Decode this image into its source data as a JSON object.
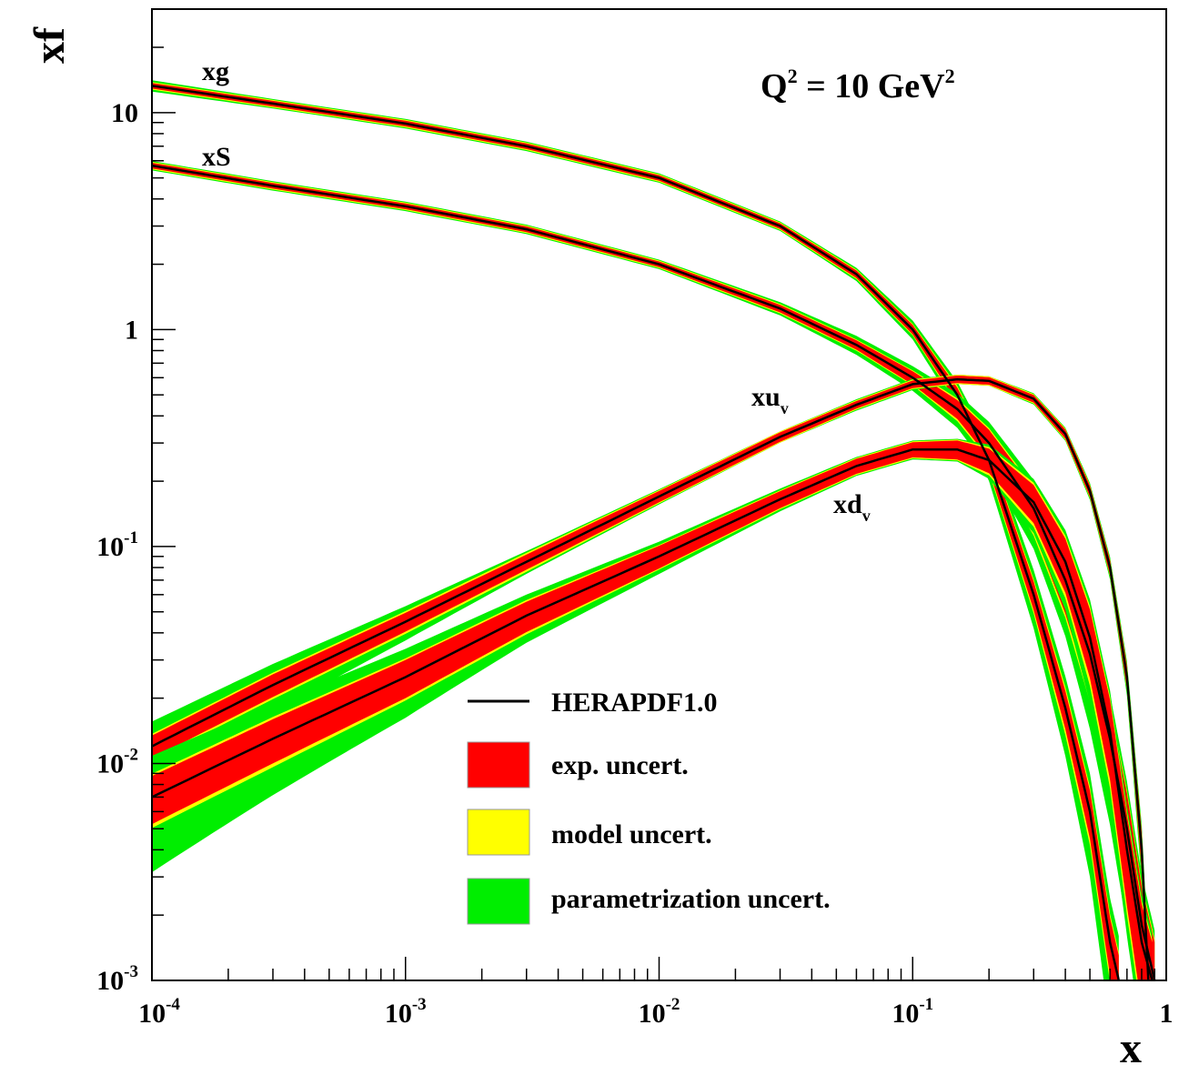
{
  "chart_data": {
    "type": "line",
    "x_scale": "log",
    "y_scale": "log",
    "xlim": [
      0.0001,
      1
    ],
    "ylim": [
      0.001,
      30
    ],
    "xlabel": "x",
    "ylabel": "xf",
    "annotation": {
      "base": "Q",
      "exp1": "2",
      "mid": " = 10 GeV",
      "exp2": "2"
    },
    "x_ticks": [
      {
        "value": 0.0001,
        "base": "10",
        "exp": "-4"
      },
      {
        "value": 0.001,
        "base": "10",
        "exp": "-3"
      },
      {
        "value": 0.01,
        "base": "10",
        "exp": "-2"
      },
      {
        "value": 0.1,
        "base": "10",
        "exp": "-1"
      },
      {
        "value": 1,
        "base": "1",
        "exp": ""
      }
    ],
    "y_ticks": [
      {
        "value": 0.001,
        "base": "10",
        "exp": "-3"
      },
      {
        "value": 0.01,
        "base": "10",
        "exp": "-2"
      },
      {
        "value": 0.1,
        "base": "10",
        "exp": "-1"
      },
      {
        "value": 1,
        "base": "1",
        "exp": ""
      },
      {
        "value": 10,
        "base": "10",
        "exp": ""
      }
    ],
    "colors": {
      "central": "#000000",
      "exp": "#ff0000",
      "model": "#ffff00",
      "param": "#00ee00"
    },
    "legend": {
      "placement": "bottom-center",
      "entries": [
        {
          "type": "line",
          "label": "HERAPDF1.0"
        },
        {
          "type": "box",
          "color": "#ff0000",
          "label": "exp. uncert."
        },
        {
          "type": "box",
          "color": "#ffff00",
          "label": "model uncert."
        },
        {
          "type": "box",
          "color": "#00ee00",
          "label": "parametrization uncert."
        }
      ]
    },
    "curve_labels": [
      {
        "base": "xg",
        "sub": ""
      },
      {
        "base": "xS",
        "sub": ""
      },
      {
        "base": "xu",
        "sub": "v"
      },
      {
        "base": "xd",
        "sub": "v"
      }
    ],
    "series": [
      {
        "name": "xg",
        "x": [
          0.0001,
          0.0003,
          0.001,
          0.003,
          0.01,
          0.03,
          0.06,
          0.1,
          0.15,
          0.2,
          0.3,
          0.4,
          0.5,
          0.6,
          0.65
        ],
        "y": [
          13.3,
          11.0,
          8.9,
          7.0,
          5.0,
          3.0,
          1.8,
          1.0,
          0.5,
          0.25,
          0.06,
          0.018,
          0.006,
          0.0015,
          0.001
        ],
        "exp_rel": [
          0.03,
          0.03,
          0.03,
          0.03,
          0.03,
          0.03,
          0.04,
          0.05,
          0.08,
          0.1,
          0.15,
          0.2,
          0.25,
          0.3,
          0.3
        ],
        "model_rel": [
          0.04,
          0.04,
          0.04,
          0.04,
          0.04,
          0.04,
          0.05,
          0.06,
          0.1,
          0.12,
          0.18,
          0.25,
          0.3,
          0.35,
          0.35
        ],
        "param_rel": [
          0.06,
          0.05,
          0.05,
          0.05,
          0.05,
          0.05,
          0.07,
          0.1,
          0.15,
          0.2,
          0.3,
          0.4,
          0.5,
          0.6,
          0.6
        ]
      },
      {
        "name": "xS",
        "x": [
          0.0001,
          0.0003,
          0.001,
          0.003,
          0.01,
          0.03,
          0.06,
          0.1,
          0.15,
          0.2,
          0.3,
          0.4,
          0.5,
          0.6,
          0.7,
          0.8,
          0.9
        ],
        "y": [
          5.7,
          4.6,
          3.7,
          2.9,
          2.0,
          1.25,
          0.85,
          0.6,
          0.43,
          0.3,
          0.15,
          0.07,
          0.032,
          0.013,
          0.005,
          0.0018,
          0.001
        ],
        "exp_rel": [
          0.03,
          0.03,
          0.03,
          0.03,
          0.03,
          0.04,
          0.05,
          0.07,
          0.1,
          0.15,
          0.22,
          0.3,
          0.35,
          0.4,
          0.45,
          0.5,
          0.5
        ],
        "model_rel": [
          0.04,
          0.04,
          0.04,
          0.04,
          0.04,
          0.05,
          0.06,
          0.08,
          0.12,
          0.17,
          0.25,
          0.33,
          0.4,
          0.45,
          0.5,
          0.55,
          0.55
        ],
        "param_rel": [
          0.05,
          0.05,
          0.05,
          0.05,
          0.05,
          0.07,
          0.1,
          0.13,
          0.18,
          0.25,
          0.35,
          0.45,
          0.55,
          0.6,
          0.65,
          0.7,
          0.7
        ]
      },
      {
        "name": "xu_v",
        "x": [
          0.0001,
          0.0003,
          0.001,
          0.003,
          0.01,
          0.03,
          0.06,
          0.1,
          0.15,
          0.2,
          0.3,
          0.4,
          0.5,
          0.6,
          0.7,
          0.8,
          0.85
        ],
        "y": [
          0.012,
          0.023,
          0.045,
          0.085,
          0.17,
          0.32,
          0.45,
          0.56,
          0.59,
          0.58,
          0.48,
          0.33,
          0.18,
          0.08,
          0.025,
          0.004,
          0.001
        ],
        "exp_rel": [
          0.12,
          0.12,
          0.1,
          0.08,
          0.06,
          0.05,
          0.04,
          0.04,
          0.04,
          0.04,
          0.04,
          0.05,
          0.06,
          0.08,
          0.12,
          0.2,
          0.25
        ],
        "model_rel": [
          0.14,
          0.14,
          0.12,
          0.1,
          0.07,
          0.06,
          0.05,
          0.05,
          0.05,
          0.05,
          0.05,
          0.06,
          0.07,
          0.09,
          0.13,
          0.22,
          0.28
        ],
        "param_rel": [
          0.3,
          0.25,
          0.18,
          0.12,
          0.08,
          0.06,
          0.06,
          0.06,
          0.05,
          0.05,
          0.06,
          0.07,
          0.09,
          0.12,
          0.18,
          0.3,
          0.35
        ]
      },
      {
        "name": "xd_v",
        "x": [
          0.0001,
          0.0003,
          0.001,
          0.003,
          0.01,
          0.03,
          0.06,
          0.1,
          0.15,
          0.2,
          0.3,
          0.4,
          0.5,
          0.6,
          0.7,
          0.8,
          0.88
        ],
        "y": [
          0.007,
          0.013,
          0.025,
          0.048,
          0.09,
          0.165,
          0.235,
          0.28,
          0.28,
          0.25,
          0.16,
          0.085,
          0.038,
          0.014,
          0.004,
          0.0015,
          0.001
        ],
        "exp_rel": [
          0.25,
          0.23,
          0.2,
          0.16,
          0.12,
          0.09,
          0.08,
          0.08,
          0.1,
          0.13,
          0.2,
          0.28,
          0.35,
          0.4,
          0.45,
          0.5,
          0.5
        ],
        "model_rel": [
          0.28,
          0.26,
          0.22,
          0.18,
          0.13,
          0.1,
          0.09,
          0.09,
          0.11,
          0.15,
          0.23,
          0.32,
          0.4,
          0.45,
          0.5,
          0.55,
          0.55
        ],
        "param_rel": [
          0.55,
          0.45,
          0.35,
          0.25,
          0.17,
          0.12,
          0.1,
          0.1,
          0.12,
          0.18,
          0.28,
          0.4,
          0.5,
          0.55,
          0.6,
          0.65,
          0.65
        ]
      }
    ]
  }
}
